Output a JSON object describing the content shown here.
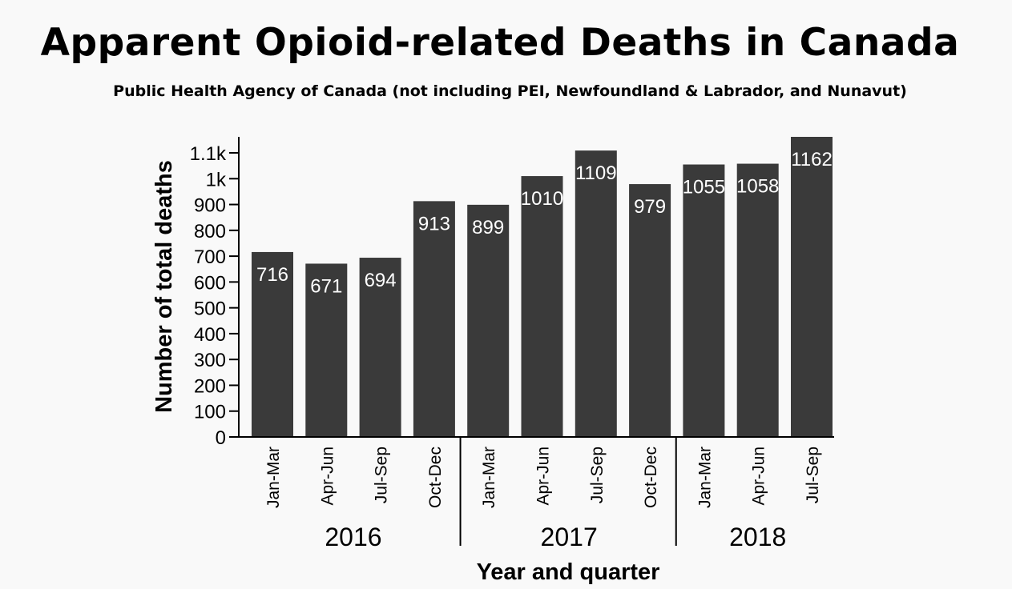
{
  "title": "Apparent Opioid-related Deaths in Canada",
  "subtitle": "Public Health Agency of Canada (not including PEI, Newfoundland & Labrador, and Nunavut)",
  "colors": {
    "bar": "#3a3a3a",
    "background": "#f9f9f9",
    "label": "#ffffff",
    "axis": "#000000"
  },
  "chart_data": {
    "type": "bar",
    "categories": [
      "Jan-Mar",
      "Apr-Jun",
      "Jul-Sep",
      "Oct-Dec",
      "Jan-Mar",
      "Apr-Jun",
      "Jul-Sep",
      "Oct-Dec",
      "Jan-Mar",
      "Apr-Jun",
      "Jul-Sep"
    ],
    "groups": [
      {
        "label": "2016",
        "categories": [
          "Jan-Mar",
          "Apr-Jun",
          "Jul-Sep",
          "Oct-Dec"
        ]
      },
      {
        "label": "2017",
        "categories": [
          "Jan-Mar",
          "Apr-Jun",
          "Jul-Sep",
          "Oct-Dec"
        ]
      },
      {
        "label": "2018",
        "categories": [
          "Jan-Mar",
          "Apr-Jun",
          "Jul-Sep"
        ]
      }
    ],
    "values": [
      716,
      671,
      694,
      913,
      899,
      1010,
      1109,
      979,
      1055,
      1058,
      1162
    ],
    "value_labels": [
      "716",
      "671",
      "694",
      "913",
      "899",
      "1010",
      "1109",
      "979",
      "1055",
      "1058",
      "1162"
    ],
    "xlabel": "Year and quarter",
    "ylabel": "Number of total deaths",
    "ylim": [
      0,
      1162
    ],
    "yticks": [
      0,
      100,
      200,
      300,
      400,
      500,
      600,
      700,
      800,
      900,
      1000,
      1100
    ],
    "ytick_labels": [
      "0",
      "100",
      "200",
      "300",
      "400",
      "500",
      "600",
      "700",
      "800",
      "900",
      "1k",
      "1.1k"
    ],
    "grid": false,
    "legend": "none"
  }
}
